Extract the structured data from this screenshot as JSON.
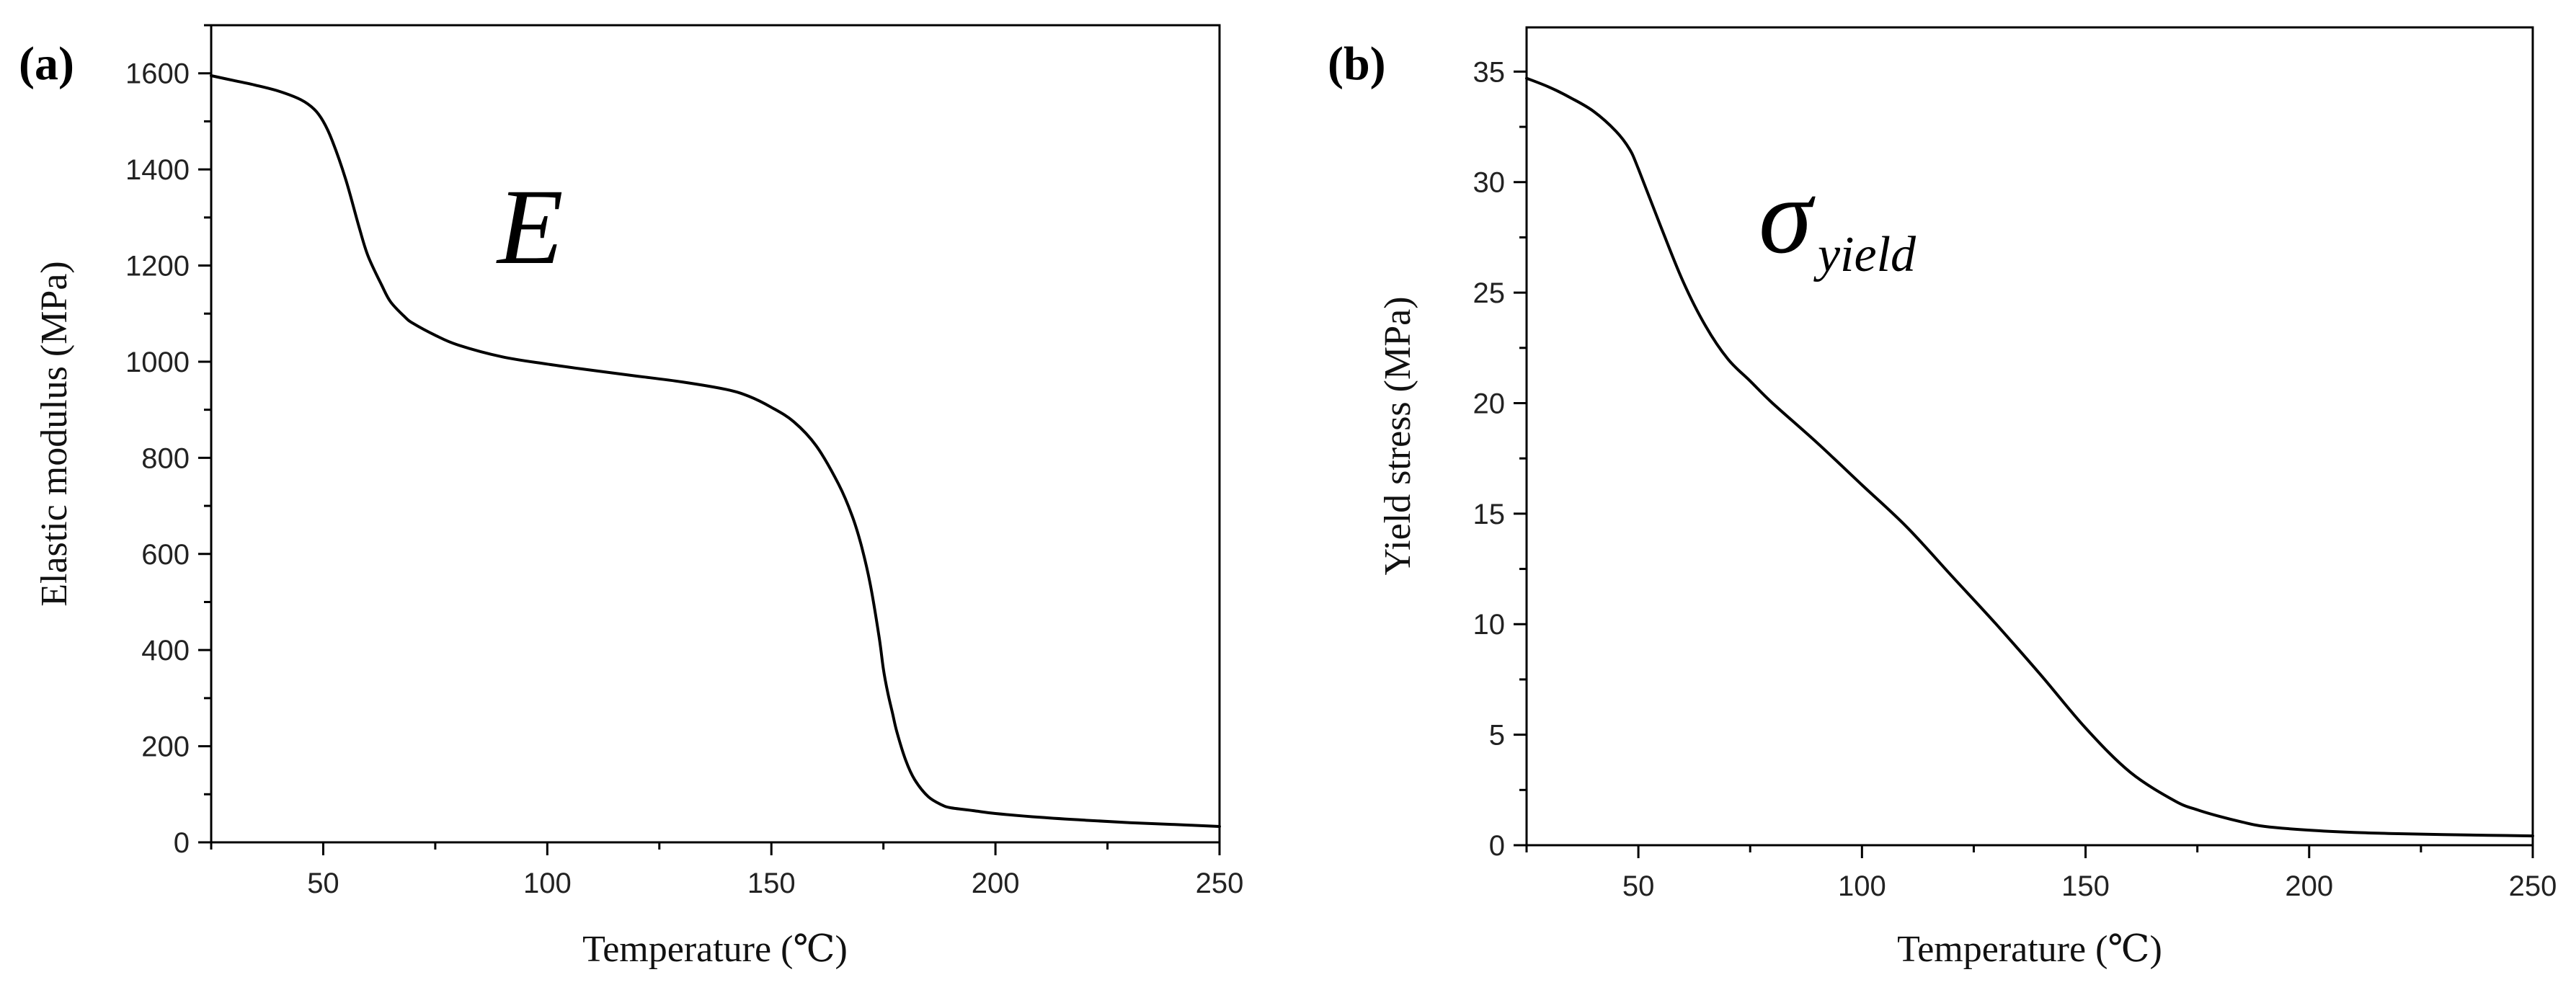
{
  "chart_data": [
    {
      "type": "line",
      "panel_label": "(a)",
      "xlabel": "Temperature (℃)",
      "ylabel": "Elastic modulus (MPa)",
      "xlim": [
        25,
        250
      ],
      "ylim": [
        0,
        1700
      ],
      "xticks": [
        50,
        100,
        150,
        200,
        250
      ],
      "yticks": [
        0,
        200,
        400,
        600,
        800,
        1000,
        1200,
        1400,
        1600
      ],
      "annotation": {
        "main": "E",
        "sub": ""
      },
      "series": [
        {
          "name": "E",
          "x": [
            25,
            30,
            35,
            40,
            45,
            48,
            50,
            52,
            55,
            58,
            60,
            63,
            65,
            68,
            70,
            75,
            80,
            90,
            100,
            110,
            120,
            130,
            140,
            145,
            150,
            155,
            160,
            165,
            168,
            170,
            172,
            174,
            175,
            176,
            177,
            178,
            180,
            182,
            185,
            188,
            190,
            195,
            200,
            210,
            220,
            230,
            240,
            250
          ],
          "y": [
            1595,
            1585,
            1575,
            1563,
            1545,
            1525,
            1500,
            1460,
            1380,
            1280,
            1220,
            1160,
            1125,
            1095,
            1080,
            1055,
            1035,
            1010,
            995,
            982,
            970,
            958,
            942,
            928,
            905,
            875,
            825,
            745,
            680,
            620,
            540,
            430,
            360,
            310,
            270,
            230,
            170,
            130,
            95,
            78,
            72,
            66,
            60,
            52,
            46,
            41,
            37,
            33
          ]
        }
      ]
    },
    {
      "type": "line",
      "panel_label": "(b)",
      "xlabel": "Temperature (℃)",
      "ylabel": "Yield stress (MPa)",
      "xlim": [
        25,
        250
      ],
      "ylim": [
        0,
        37
      ],
      "xticks": [
        50,
        100,
        150,
        200,
        250
      ],
      "yticks": [
        0,
        5,
        10,
        15,
        20,
        25,
        30,
        35
      ],
      "annotation": {
        "main": "σ",
        "sub": "yield"
      },
      "series": [
        {
          "name": "σyield",
          "x": [
            25,
            30,
            35,
            40,
            45,
            48,
            50,
            55,
            60,
            65,
            70,
            75,
            80,
            90,
            100,
            110,
            120,
            130,
            140,
            150,
            160,
            170,
            175,
            180,
            185,
            190,
            200,
            210,
            220,
            230,
            240,
            250
          ],
          "y": [
            34.7,
            34.3,
            33.8,
            33.2,
            32.3,
            31.5,
            30.6,
            28.0,
            25.5,
            23.5,
            22.0,
            21.0,
            20.0,
            18.2,
            16.3,
            14.4,
            12.2,
            10.0,
            7.7,
            5.3,
            3.3,
            2.0,
            1.6,
            1.3,
            1.05,
            0.85,
            0.68,
            0.58,
            0.52,
            0.48,
            0.45,
            0.42
          ]
        }
      ]
    }
  ]
}
